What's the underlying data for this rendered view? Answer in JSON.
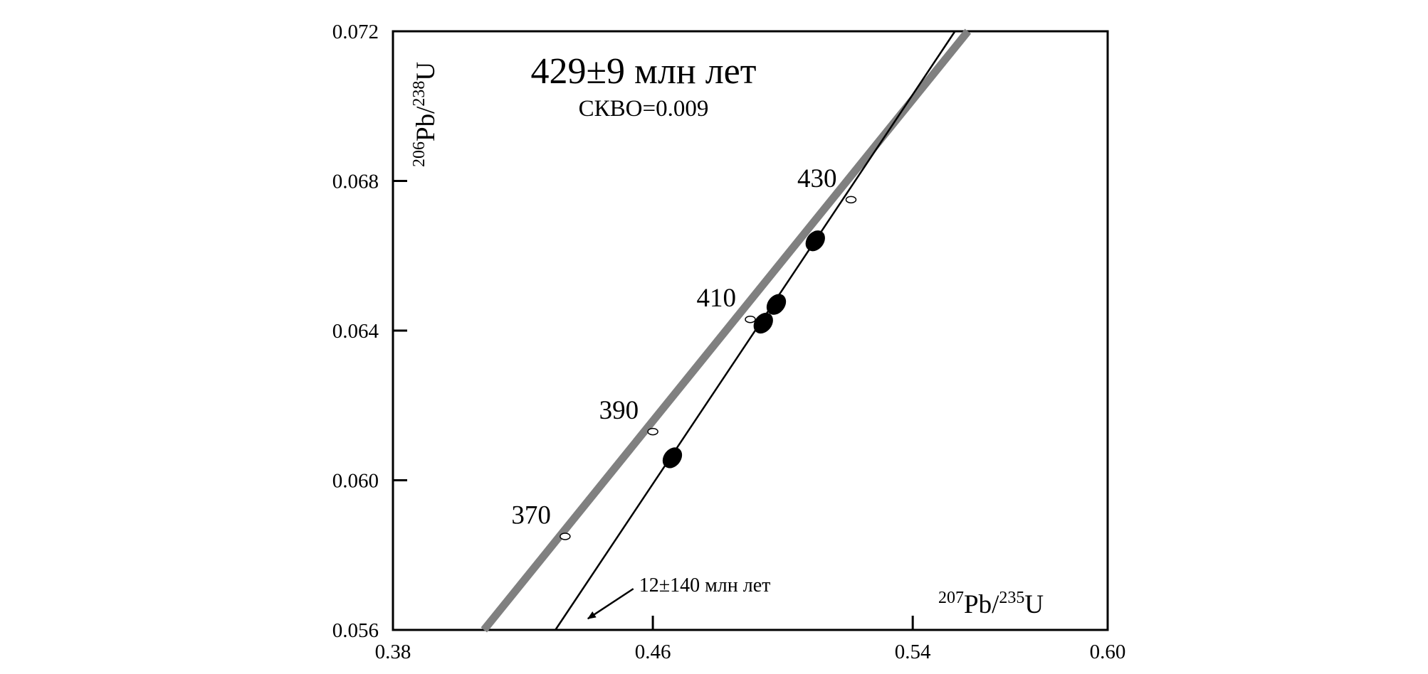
{
  "chart_data": {
    "type": "scatter",
    "title": "429±9 млн лет",
    "subtitle": "СКВО=0.009",
    "xlabel": {
      "sup1": "207",
      "base1": "Pb/",
      "sup2": "235",
      "base2": "U"
    },
    "ylabel": {
      "sup1": "206",
      "base1": "Pb/",
      "sup2": "238",
      "base2": "U"
    },
    "xlim": [
      0.38,
      0.6
    ],
    "ylim": [
      0.056,
      0.072
    ],
    "xticks": [
      {
        "value": 0.38,
        "label": "0.38"
      },
      {
        "value": 0.46,
        "label": "0.46"
      },
      {
        "value": 0.54,
        "label": "0.54"
      },
      {
        "value": 0.6,
        "label": "0.60"
      }
    ],
    "yticks": [
      {
        "value": 0.056,
        "label": "0.056"
      },
      {
        "value": 0.06,
        "label": "0.060"
      },
      {
        "value": 0.064,
        "label": "0.064"
      },
      {
        "value": 0.068,
        "label": "0.068"
      },
      {
        "value": 0.072,
        "label": "0.072"
      }
    ],
    "grid": false,
    "concordia": {
      "color": "#808080",
      "start": {
        "x": 0.408,
        "y": 0.056
      },
      "end": {
        "x": 0.557,
        "y": 0.072
      },
      "age_marks": [
        {
          "label": "370",
          "x": 0.433,
          "y": 0.0585
        },
        {
          "label": "390",
          "x": 0.46,
          "y": 0.0613
        },
        {
          "label": "410",
          "x": 0.49,
          "y": 0.0643
        },
        {
          "label": "430",
          "x": 0.521,
          "y": 0.0675
        }
      ]
    },
    "discordia": {
      "color": "#000000",
      "start": {
        "x": 0.43,
        "y": 0.056
      },
      "end": {
        "x": 0.553,
        "y": 0.072
      }
    },
    "points": [
      {
        "x": 0.466,
        "y": 0.0606
      },
      {
        "x": 0.494,
        "y": 0.0642
      },
      {
        "x": 0.498,
        "y": 0.0647
      },
      {
        "x": 0.51,
        "y": 0.0664
      }
    ],
    "annotation": {
      "text": "12±140 млн лет",
      "arrow_from": {
        "x": 0.454,
        "y": 0.0571
      },
      "arrow_to": {
        "x": 0.44,
        "y": 0.0563
      }
    }
  }
}
